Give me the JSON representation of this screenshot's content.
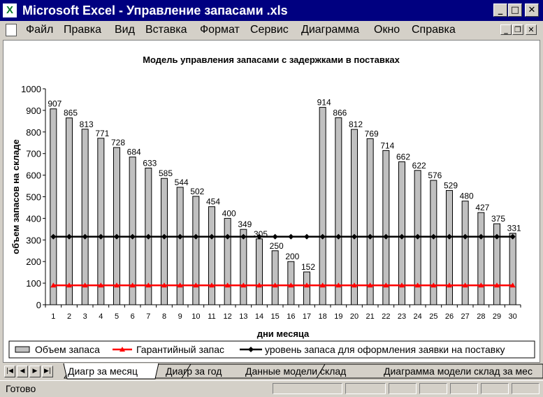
{
  "window": {
    "title": "Microsoft Excel - Управление запасами .xls",
    "minimize_glyph": "_",
    "maximize_glyph": "□",
    "close_glyph": "✕"
  },
  "menu": [
    "Файл",
    "Правка",
    "Вид",
    "Вставка",
    "Формат",
    "Сервис",
    "Диаграмма",
    "Окно",
    "Справка"
  ],
  "doc_buttons": {
    "minimize": "_",
    "restore": "❐",
    "close": "✕"
  },
  "sheet_nav": [
    "|◀",
    "◀",
    "▶",
    "▶|"
  ],
  "tabs": [
    "Диагр за месяц",
    "Диагр за год",
    "Данные модели склад",
    "Диаграмма модели склад за мес"
  ],
  "status": {
    "text": "Готово"
  },
  "chart_data": {
    "type": "bar",
    "title": "Модель управления запасами с задержками в поставках",
    "xlabel": "дни месяца",
    "ylabel": "объем запасов на складе",
    "ylim": [
      0,
      1000
    ],
    "yticks": [
      0,
      100,
      200,
      300,
      400,
      500,
      600,
      700,
      800,
      900,
      1000
    ],
    "categories": [
      "1",
      "2",
      "3",
      "4",
      "5",
      "6",
      "7",
      "8",
      "9",
      "10",
      "11",
      "12",
      "13",
      "14",
      "15",
      "16",
      "17",
      "18",
      "19",
      "20",
      "21",
      "22",
      "23",
      "24",
      "25",
      "26",
      "27",
      "28",
      "29",
      "30"
    ],
    "series": [
      {
        "name": "Объем запаса",
        "kind": "bar",
        "color": "#c0c0c0",
        "values": [
          907,
          865,
          813,
          771,
          728,
          684,
          633,
          585,
          544,
          502,
          454,
          400,
          349,
          305,
          250,
          200,
          152,
          914,
          866,
          812,
          769,
          714,
          662,
          622,
          576,
          529,
          480,
          427,
          375,
          331
        ],
        "labels": [
          "907",
          "865",
          "813",
          "771",
          "728",
          "684",
          "633",
          "585",
          "544",
          "502",
          "454",
          "400",
          "349",
          "305",
          "250",
          "200",
          "152",
          "914",
          "866",
          "812",
          "769",
          "714",
          "662",
          "622",
          "576",
          "529",
          "480",
          "427",
          "375",
          "331"
        ]
      },
      {
        "name": "Гарантийный запас",
        "kind": "line",
        "marker": "triangle",
        "color": "#ff0000",
        "values": [
          90,
          90,
          90,
          90,
          90,
          90,
          90,
          90,
          90,
          90,
          90,
          90,
          90,
          90,
          90,
          90,
          90,
          90,
          90,
          90,
          90,
          90,
          90,
          90,
          90,
          90,
          90,
          90,
          90,
          90
        ]
      },
      {
        "name": "уровень запаса для оформления заявки на поставку",
        "kind": "line",
        "marker": "diamond",
        "color": "#000000",
        "values": [
          315,
          315,
          315,
          315,
          315,
          315,
          315,
          315,
          315,
          315,
          315,
          315,
          315,
          315,
          315,
          315,
          315,
          315,
          315,
          315,
          315,
          315,
          315,
          315,
          315,
          315,
          315,
          315,
          315,
          315
        ]
      }
    ],
    "grid": false,
    "legend_position": "bottom"
  }
}
